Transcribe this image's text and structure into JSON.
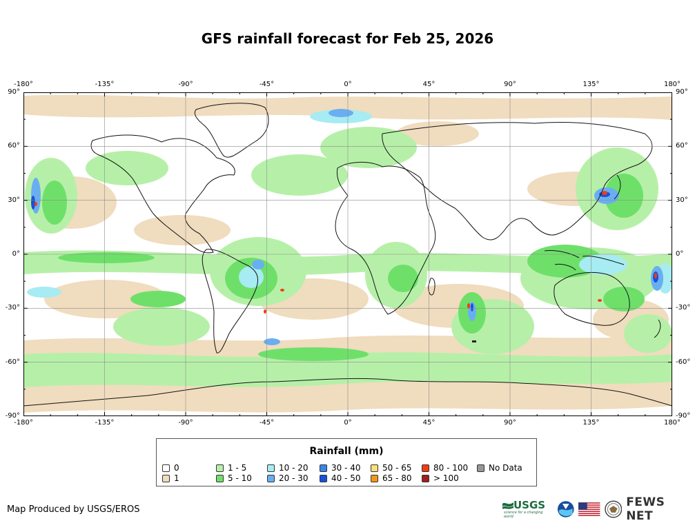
{
  "title": "GFS rainfall forecast for Feb 25, 2026",
  "longitude_ticks": [
    "-180°",
    "-135°",
    "-90°",
    "-45°",
    "0°",
    "45°",
    "90°",
    "135°",
    "180°"
  ],
  "latitude_ticks": [
    "90°",
    "60°",
    "30°",
    "0°",
    "-30°",
    "-60°",
    "-90°"
  ],
  "legend": {
    "title": "Rainfall (mm)",
    "items": [
      {
        "label": "0",
        "color": "#ffffff"
      },
      {
        "label": "1",
        "color": "#f0dcbe"
      },
      {
        "label": "1 - 5",
        "color": "#b6f0a8"
      },
      {
        "label": "5 - 10",
        "color": "#6ee06a"
      },
      {
        "label": "10 - 20",
        "color": "#a6ecf2"
      },
      {
        "label": "20 - 30",
        "color": "#6aaef2"
      },
      {
        "label": "30 - 40",
        "color": "#3a86e8"
      },
      {
        "label": "40 - 50",
        "color": "#1a50d8"
      },
      {
        "label": "50 - 65",
        "color": "#f6e07a"
      },
      {
        "label": "65 - 80",
        "color": "#f0961e"
      },
      {
        "label": "80 - 100",
        "color": "#f03c14"
      },
      {
        "label": "> 100",
        "color": "#a01e1e"
      },
      {
        "label": "No Data",
        "color": "#969696"
      }
    ]
  },
  "credit": "Map Produced by USGS/EROS",
  "logos": {
    "usgs_label": "USGS",
    "usgs_tagline": "science for a changing world",
    "fews_label": "FEWS NET",
    "icons": [
      "usgs-logo",
      "noaa-logo",
      "us-flag",
      "state-department-seal"
    ]
  }
}
